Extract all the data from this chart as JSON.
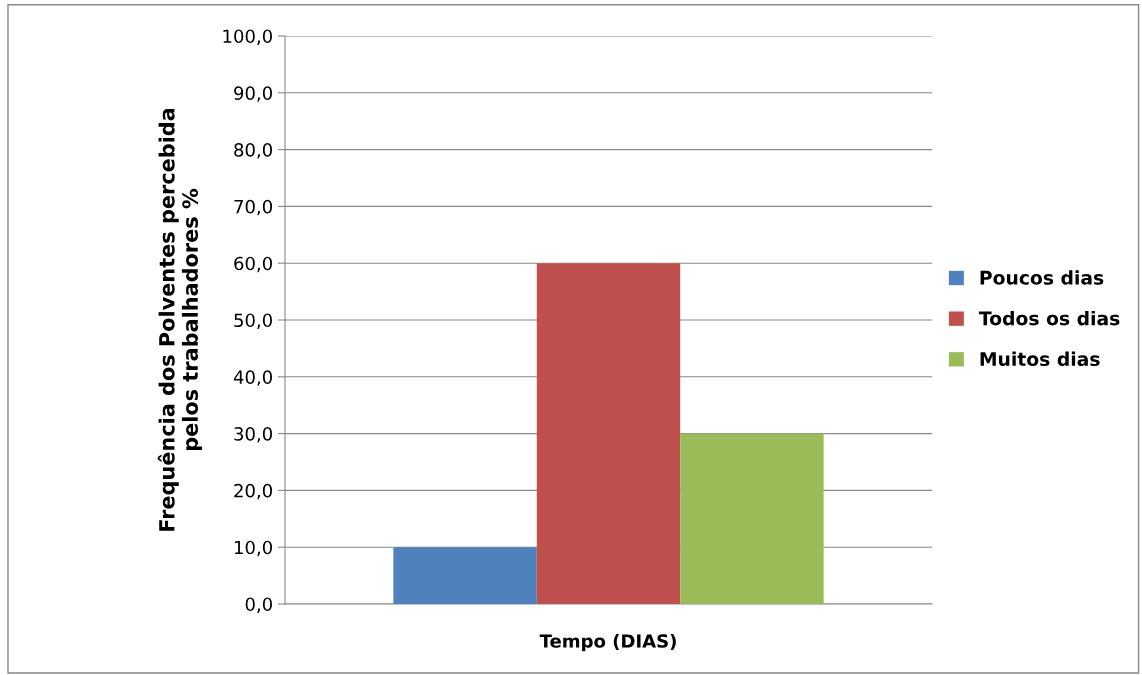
{
  "chart_data": {
    "type": "bar",
    "categories": [
      null
    ],
    "xlabel": "Tempo (DIAS)",
    "ylabel": "Frequência dos Polventes percebida\npelos trabalhadores %",
    "series": [
      {
        "name": "Poucos dias",
        "color": "#4f81bd",
        "values": [
          10
        ]
      },
      {
        "name": "Todos os dias",
        "color": "#c0504d",
        "values": [
          60
        ]
      },
      {
        "name": "Muitos dias",
        "color": "#9bbb59",
        "values": [
          30
        ]
      }
    ],
    "ylim": [
      0,
      100
    ],
    "yticks": [
      {
        "value": 0,
        "label": "0,0"
      },
      {
        "value": 10,
        "label": "10,0"
      },
      {
        "value": 20,
        "label": "20,0"
      },
      {
        "value": 30,
        "label": "30,0"
      },
      {
        "value": 40,
        "label": "40,0"
      },
      {
        "value": 50,
        "label": "50,0"
      },
      {
        "value": 60,
        "label": "60,0"
      },
      {
        "value": 70,
        "label": "70,0"
      },
      {
        "value": 80,
        "label": "80,0"
      },
      {
        "value": 90,
        "label": "90,0"
      },
      {
        "value": 100,
        "label": "100,0"
      }
    ],
    "grid": "y",
    "legend": "right"
  }
}
